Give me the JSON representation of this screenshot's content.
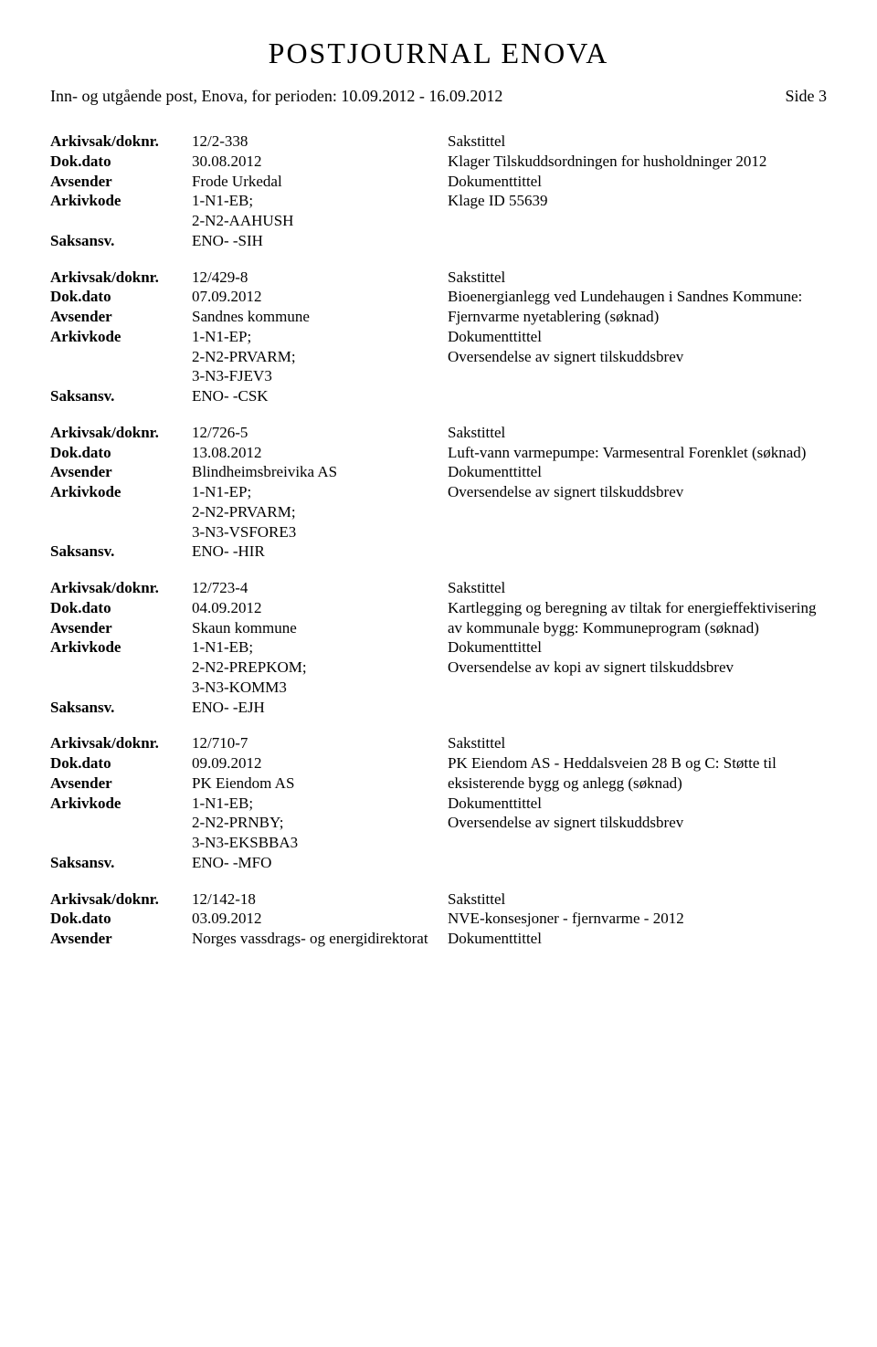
{
  "header": {
    "title": "POSTJOURNAL ENOVA",
    "subtitle": "Inn- og utgående post, Enova, for perioden: 10.09.2012 - 16.09.2012",
    "side_label": "Side 3"
  },
  "labels": {
    "arkivsak": "Arkivsak/doknr.",
    "dokdato": "Dok.dato",
    "avsender": "Avsender",
    "arkivkode": "Arkivkode",
    "saksansv": "Saksansv.",
    "sakstittel": "Sakstittel",
    "dokumenttittel": "Dokumenttittel"
  },
  "records": [
    {
      "arkivsak": "12/2-338",
      "dokdato": "30.08.2012",
      "avsender": "Frode Urkedal",
      "arkivkode": "1-N1-EB; 2-N2-AAHUSH",
      "saksansv": "ENO- -SIH",
      "sakstittel": "Klager Tilskuddsordningen for husholdninger 2012",
      "doktittel": "Klage ID 55639"
    },
    {
      "arkivsak": "12/429-8",
      "dokdato": "07.09.2012",
      "avsender": "Sandnes kommune",
      "arkivkode": "1-N1-EP; 2-N2-PRVARM; 3-N3-FJEV3",
      "saksansv": "ENO- -CSK",
      "sakstittel": "Bioenergianlegg ved Lundehaugen i Sandnes Kommune: Fjernvarme nyetablering (søknad)",
      "doktittel": "Oversendelse av signert tilskuddsbrev"
    },
    {
      "arkivsak": "12/726-5",
      "dokdato": "13.08.2012",
      "avsender": "Blindheimsbreivika AS",
      "arkivkode": "1-N1-EP; 2-N2-PRVARM; 3-N3-VSFORE3",
      "saksansv": "ENO- -HIR",
      "sakstittel": "Luft-vann varmepumpe: Varmesentral Forenklet (søknad)",
      "doktittel": "Oversendelse av signert tilskuddsbrev"
    },
    {
      "arkivsak": "12/723-4",
      "dokdato": "04.09.2012",
      "avsender": "Skaun kommune",
      "arkivkode": "1-N1-EB; 2-N2-PREPKOM; 3-N3-KOMM3",
      "saksansv": "ENO- -EJH",
      "sakstittel": "Kartlegging og beregning av tiltak for energieffektivisering av kommunale bygg: Kommuneprogram (søknad)",
      "doktittel": "Oversendelse av kopi av signert tilskuddsbrev"
    },
    {
      "arkivsak": "12/710-7",
      "dokdato": "09.09.2012",
      "avsender": "PK Eiendom AS",
      "arkivkode": "1-N1-EB; 2-N2-PRNBY; 3-N3-EKSBBA3",
      "saksansv": "ENO- -MFO",
      "sakstittel": "PK Eiendom AS - Heddalsveien 28 B og C: Støtte til eksisterende bygg og anlegg (søknad)",
      "doktittel": "Oversendelse av signert tilskuddsbrev"
    },
    {
      "arkivsak": "12/142-18",
      "dokdato": "03.09.2012",
      "avsender": "Norges vassdrags- og energidirektorat",
      "arkivkode": "",
      "saksansv": "",
      "sakstittel": "NVE-konsesjoner - fjernvarme - 2012",
      "doktittel": "",
      "partial": true
    }
  ]
}
